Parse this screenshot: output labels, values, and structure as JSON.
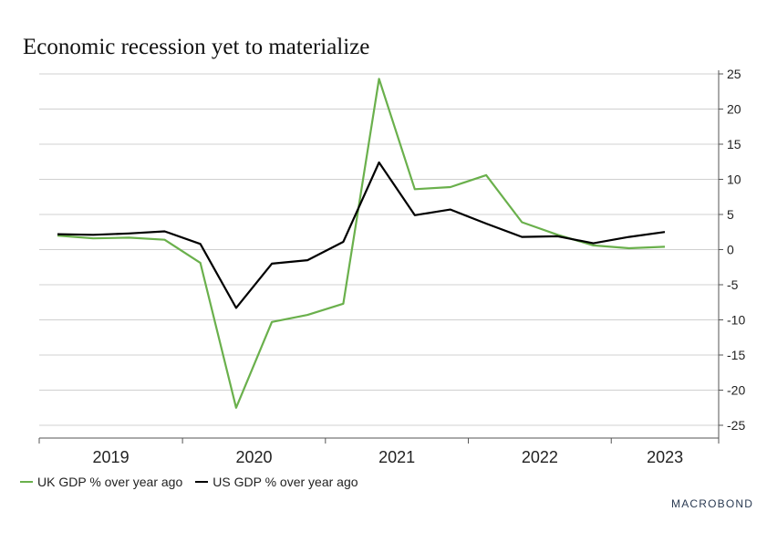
{
  "chart_data": {
    "type": "line",
    "title": "Economic recession yet to materialize",
    "x": [
      "2019 Q1",
      "2019 Q2",
      "2019 Q3",
      "2019 Q4",
      "2020 Q1",
      "2020 Q2",
      "2020 Q3",
      "2020 Q4",
      "2021 Q1",
      "2021 Q2",
      "2021 Q3",
      "2021 Q4",
      "2022 Q1",
      "2022 Q2",
      "2022 Q3",
      "2022 Q4",
      "2023 Q1",
      "2023 Q2"
    ],
    "x_axis_labels": [
      "2019",
      "2020",
      "2021",
      "2022",
      "2023"
    ],
    "series": [
      {
        "name": "UK GDP % over year ago",
        "color": "#6ab04c",
        "values": [
          2.0,
          1.6,
          1.7,
          1.4,
          -1.9,
          -22.5,
          -10.3,
          -9.3,
          -7.7,
          24.3,
          8.6,
          8.9,
          10.6,
          3.9,
          2.1,
          0.6,
          0.2,
          0.4
        ]
      },
      {
        "name": "US GDP % over year ago",
        "color": "#000000",
        "values": [
          2.2,
          2.1,
          2.3,
          2.6,
          0.8,
          -8.3,
          -2.0,
          -1.5,
          1.1,
          12.4,
          4.9,
          5.7,
          3.7,
          1.8,
          1.9,
          0.9,
          1.8,
          2.5
        ]
      }
    ],
    "y_ticks": [
      25,
      20,
      15,
      10,
      5,
      0,
      -5,
      -10,
      -15,
      -20,
      -25
    ],
    "ylim": [
      -25,
      25
    ],
    "y_axis_side": "right",
    "grid": true,
    "legend_placement": "bottom-left"
  },
  "branding": {
    "logo_text": "MACROBOND"
  }
}
